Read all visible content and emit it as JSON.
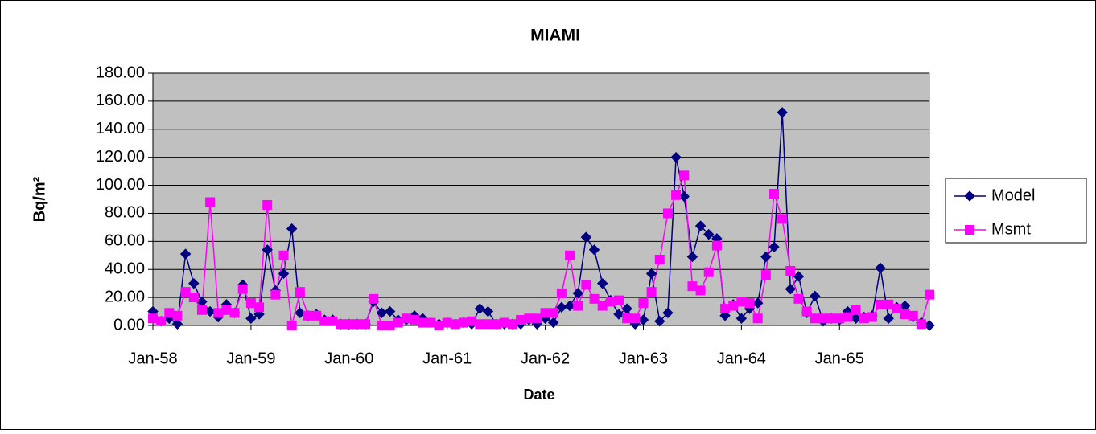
{
  "chart_data": {
    "type": "line",
    "title": "MIAMI",
    "x_label": "Date",
    "y_label": "Bq/m²",
    "categories": [
      "Jan-58",
      null,
      null,
      null,
      null,
      null,
      null,
      null,
      null,
      null,
      null,
      null,
      "Jan-59",
      null,
      null,
      null,
      null,
      null,
      null,
      null,
      null,
      null,
      null,
      null,
      "Jan-60",
      null,
      null,
      null,
      null,
      null,
      null,
      null,
      null,
      null,
      null,
      null,
      "Jan-61",
      null,
      null,
      null,
      null,
      null,
      null,
      null,
      null,
      null,
      null,
      null,
      "Jan-62",
      null,
      null,
      null,
      null,
      null,
      null,
      null,
      null,
      null,
      null,
      null,
      "Jan-63",
      null,
      null,
      null,
      null,
      null,
      null,
      null,
      null,
      null,
      null,
      null,
      "Jan-64",
      null,
      null,
      null,
      null,
      null,
      null,
      null,
      null,
      null,
      null,
      null,
      "Jan-65",
      null,
      null,
      null,
      null,
      null,
      null,
      null,
      null,
      null,
      null,
      null
    ],
    "series": [
      {
        "name": "Model",
        "color": "#000080",
        "marker": "diamond",
        "values": [
          10,
          3,
          5,
          1,
          51,
          30,
          17,
          10,
          6,
          15,
          9,
          29,
          5,
          8,
          54,
          25,
          37,
          69,
          9,
          7,
          8,
          4,
          4,
          1,
          1,
          1,
          1,
          17,
          9,
          10,
          4,
          4,
          7,
          5,
          2,
          1,
          2,
          1,
          2,
          1,
          12,
          10,
          1,
          1,
          1,
          1,
          4,
          1,
          5,
          2,
          13,
          14,
          23,
          63,
          54,
          30,
          18,
          8,
          12,
          1,
          4,
          37,
          3,
          9,
          120,
          92,
          49,
          71,
          65,
          62,
          7,
          15,
          5,
          12,
          16,
          49,
          56,
          152,
          26,
          35,
          9,
          21,
          3,
          5,
          4,
          10,
          5,
          6,
          7,
          41,
          5,
          13,
          14,
          6,
          2,
          0
        ]
      },
      {
        "name": "Msmt",
        "color": "#ff00ff",
        "marker": "square",
        "values": [
          5,
          3,
          9,
          7,
          24,
          20,
          11,
          88,
          9,
          11,
          9,
          26,
          16,
          13,
          86,
          22,
          50,
          0,
          24,
          7,
          7,
          3,
          3,
          1,
          1,
          1,
          1,
          19,
          0,
          0,
          2,
          5,
          4,
          2,
          2,
          0,
          2,
          1,
          2,
          3,
          1,
          1,
          1,
          2,
          1,
          4,
          5,
          5,
          9,
          9,
          23,
          50,
          14,
          29,
          19,
          14,
          17,
          18,
          5,
          5,
          16,
          24,
          47,
          80,
          93,
          107,
          28,
          25,
          38,
          57,
          12,
          14,
          17,
          16,
          5,
          36,
          94,
          76,
          39,
          19,
          10,
          5,
          5,
          5,
          5,
          6,
          11,
          5,
          6,
          15,
          15,
          12,
          8,
          7,
          1,
          22
        ]
      }
    ],
    "ylim": [
      0,
      180
    ],
    "yticks": [
      {
        "value": 0,
        "label": "0.00"
      },
      {
        "value": 20,
        "label": "20.00"
      },
      {
        "value": 40,
        "label": "40.00"
      },
      {
        "value": 60,
        "label": "60.00"
      },
      {
        "value": 80,
        "label": "80.00"
      },
      {
        "value": 100,
        "label": "100.00"
      },
      {
        "value": 120,
        "label": "120.00"
      },
      {
        "value": 140,
        "label": "140.00"
      },
      {
        "value": 160,
        "label": "160.00"
      },
      {
        "value": 180,
        "label": "180.00"
      }
    ],
    "grid": true,
    "legend": "right",
    "plot_background": "#c0c0c0"
  }
}
